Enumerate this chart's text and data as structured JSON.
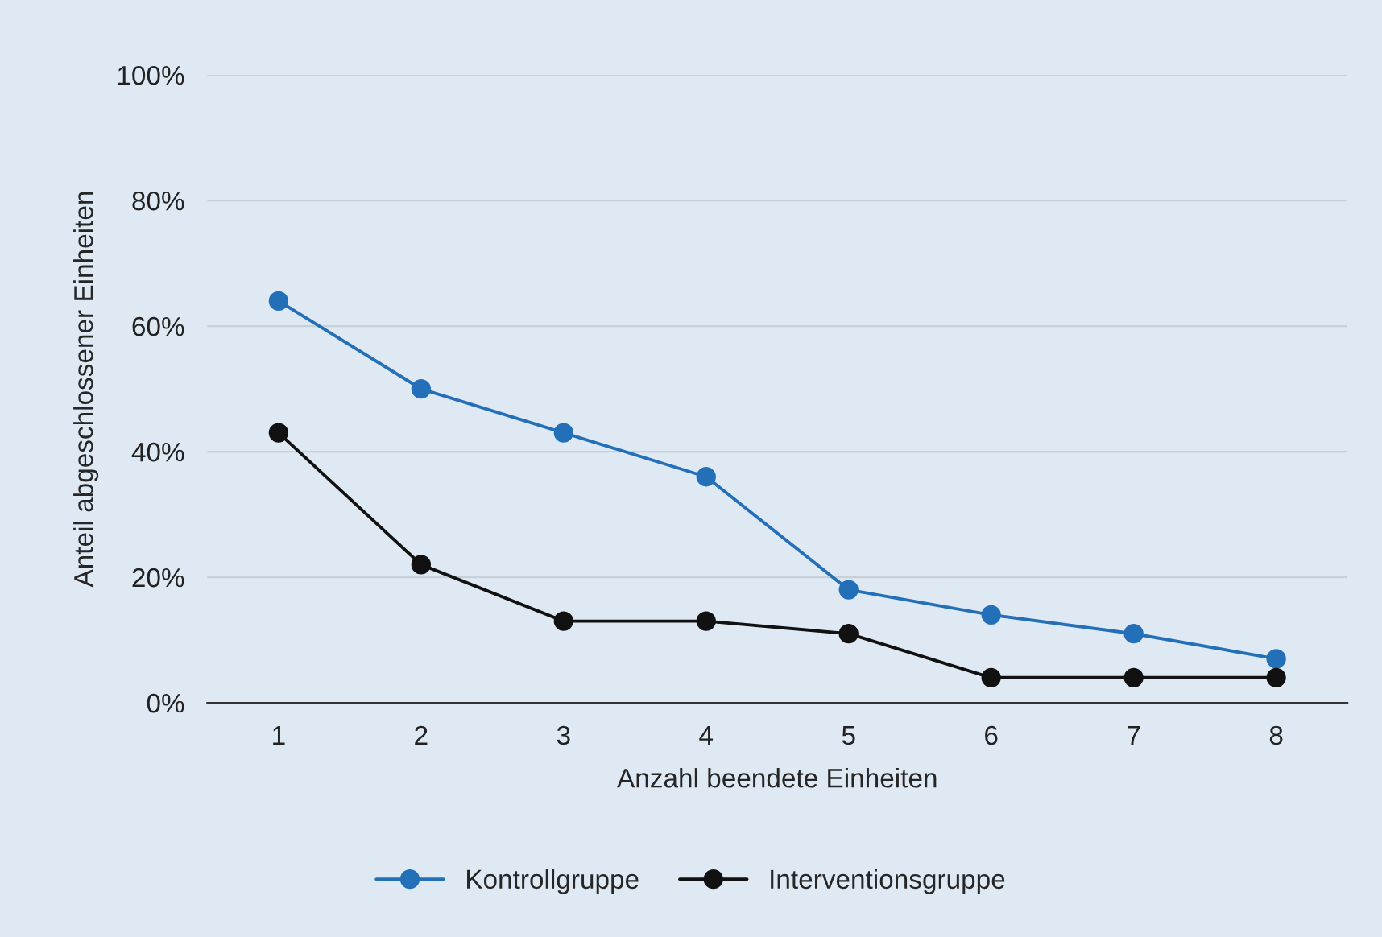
{
  "chart_data": {
    "type": "line",
    "xlabel": "Anzahl beendete Einheiten",
    "ylabel": "Anteil abgeschlossener Einheiten",
    "categories": [
      "1",
      "2",
      "3",
      "4",
      "5",
      "6",
      "7",
      "8"
    ],
    "series": [
      {
        "name": "Kontrollgruppe",
        "color": "#2370b8",
        "values": [
          64,
          50,
          43,
          36,
          18,
          14,
          11,
          7
        ]
      },
      {
        "name": "Interventionsgruppe",
        "color": "#111111",
        "values": [
          43,
          22,
          13,
          13,
          11,
          4,
          4,
          4
        ]
      }
    ],
    "ylim": [
      0,
      100
    ],
    "yticks": [
      {
        "value": 0,
        "label": "0%"
      },
      {
        "value": 20,
        "label": "20%"
      },
      {
        "value": 40,
        "label": "40%"
      },
      {
        "value": 60,
        "label": "60%"
      },
      {
        "value": 80,
        "label": "80%"
      },
      {
        "value": 100,
        "label": "100%"
      }
    ],
    "grid": "y",
    "legend": "bottom",
    "marker": "circle",
    "line_style": "solid"
  }
}
